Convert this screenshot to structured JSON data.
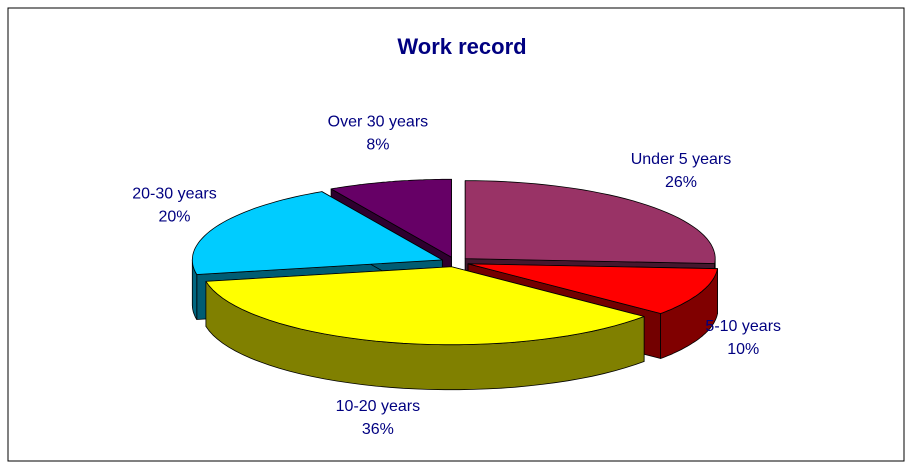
{
  "chart_data": {
    "type": "pie",
    "title": "Work record",
    "categories": [
      "Under 5 years",
      "5-10 years",
      "10-20 years",
      "20-30 years",
      "Over 30 years"
    ],
    "values": [
      26,
      10,
      36,
      20,
      8
    ],
    "value_labels": [
      "26%",
      "10%",
      "36%",
      "20%",
      "8%"
    ],
    "colors": [
      "#993366",
      "#ff0000",
      "#ffff00",
      "#00ccff",
      "#660066"
    ]
  }
}
